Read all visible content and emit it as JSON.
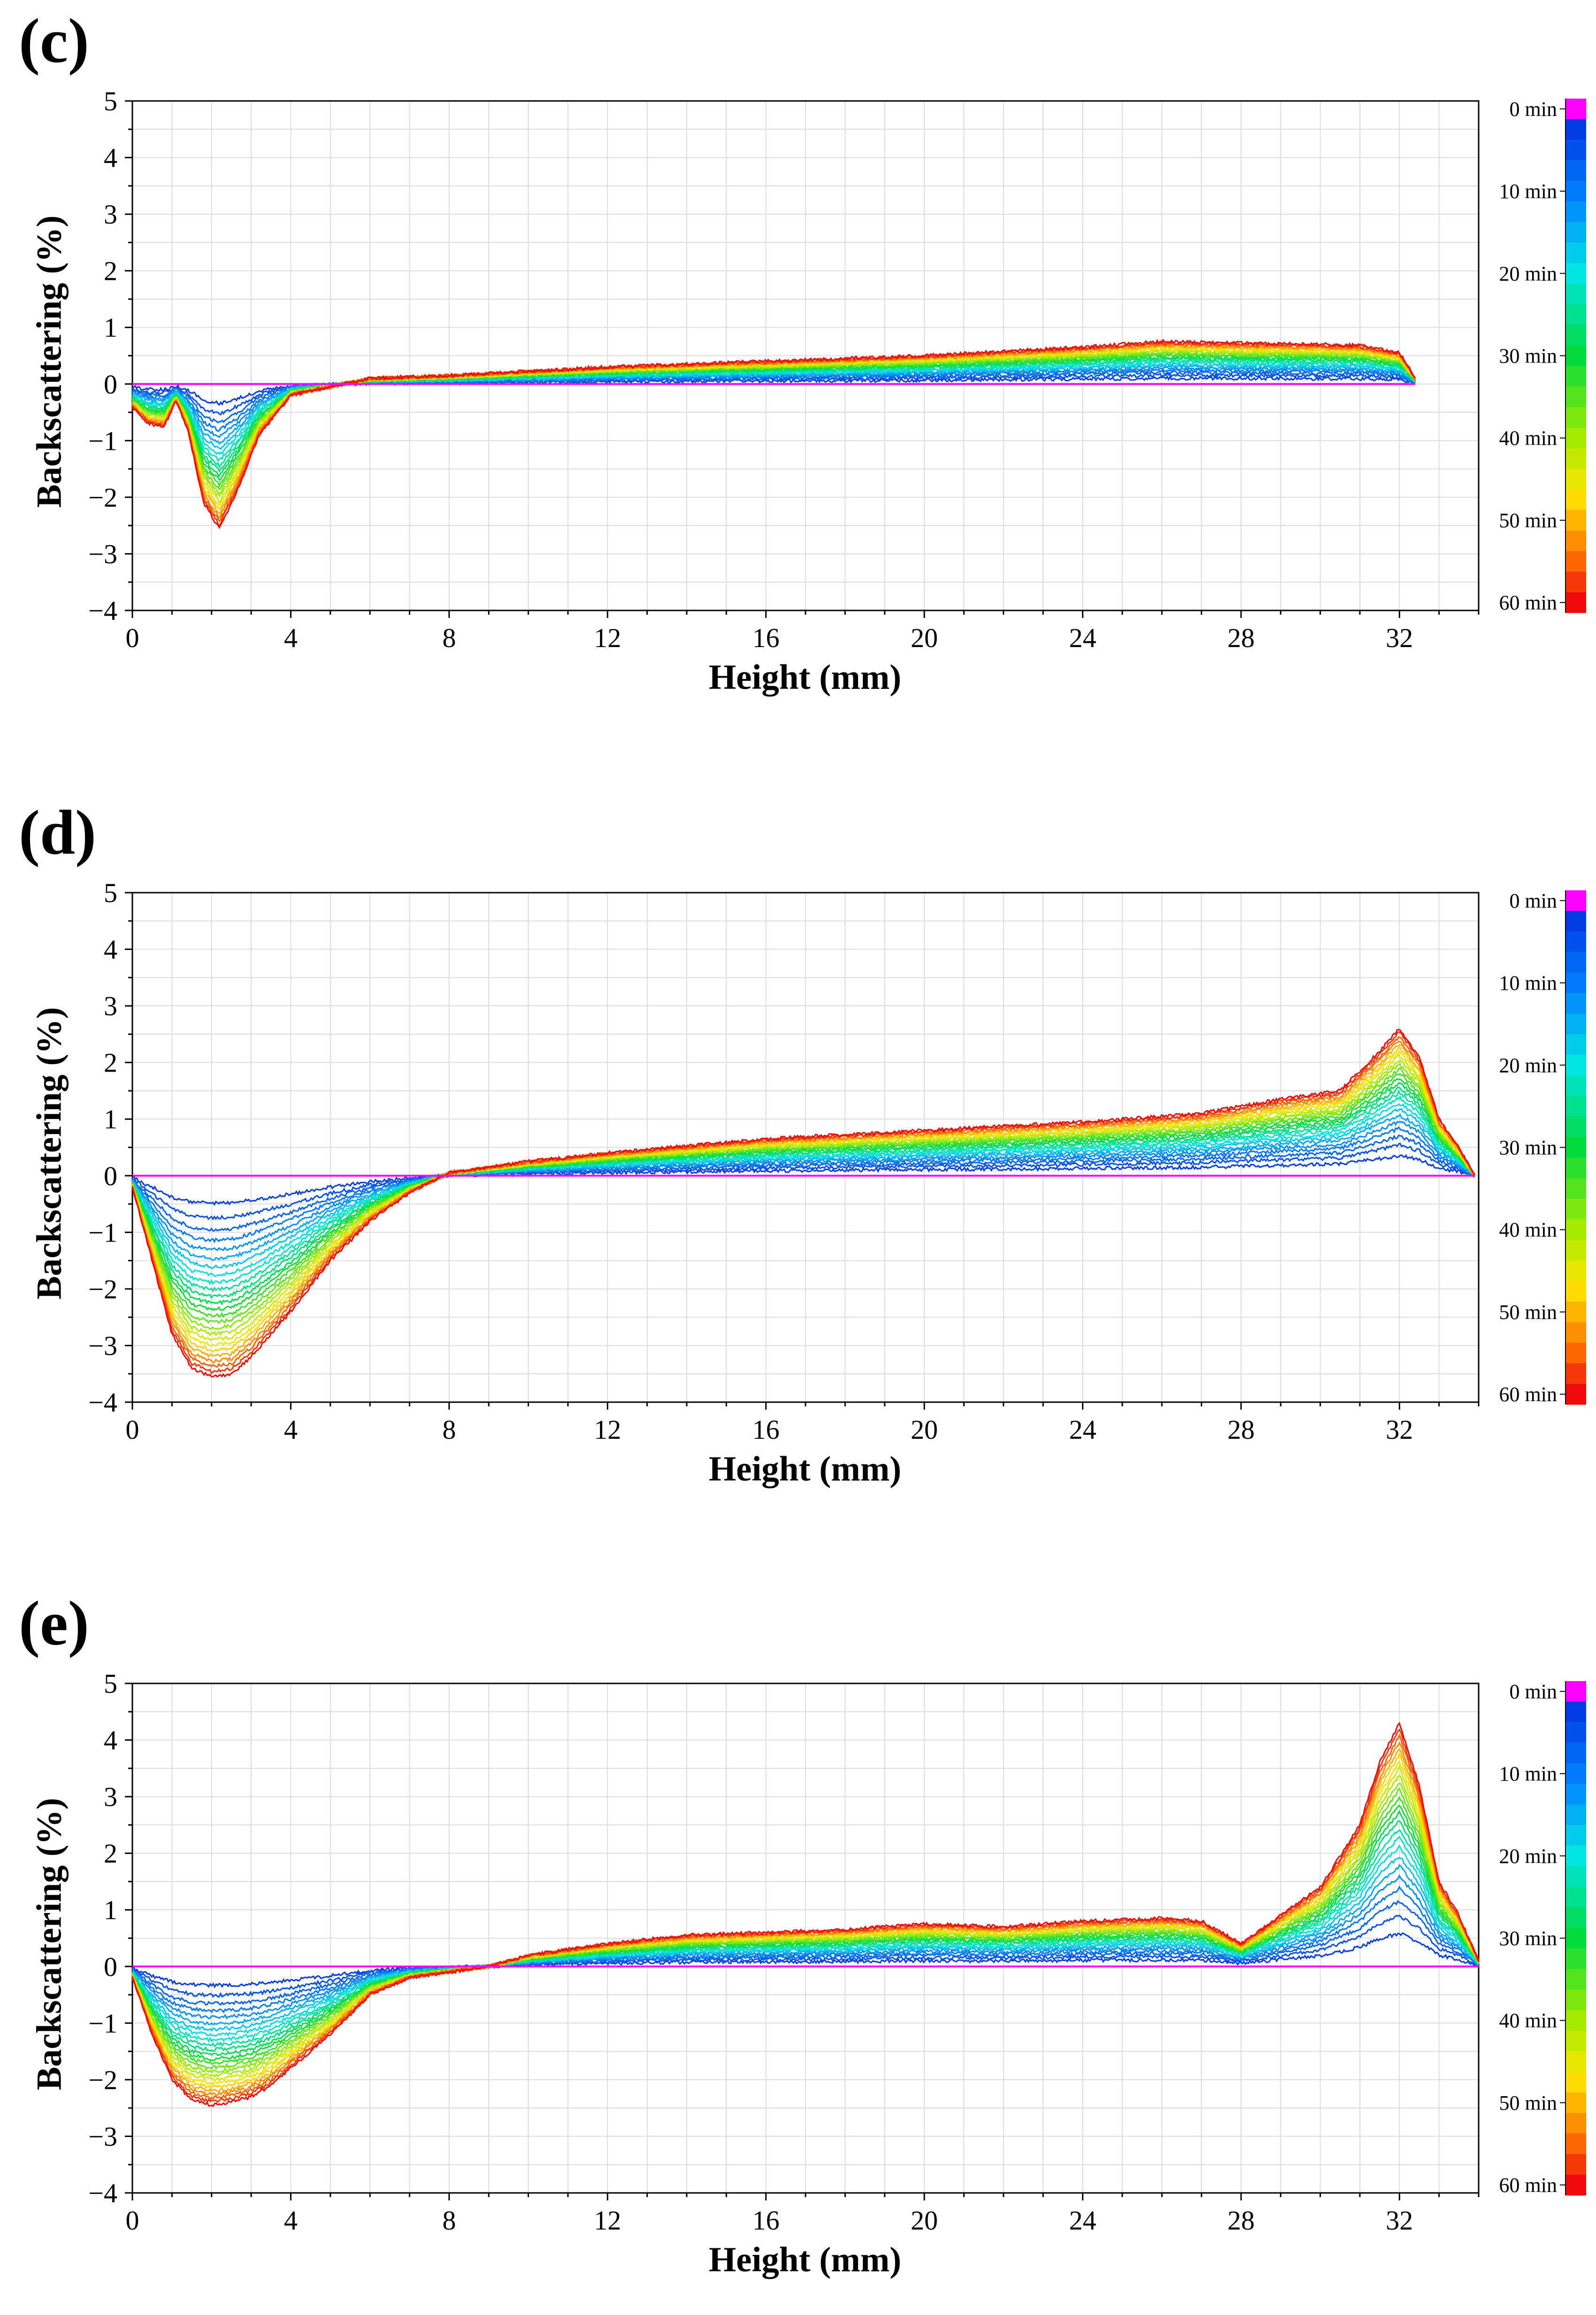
{
  "chart_data": [
    {
      "type": "line",
      "panel_label": "(c)",
      "xlabel": "Height (mm)",
      "ylabel": "Backscattering (%)",
      "xlim": [
        0,
        34
      ],
      "ylim": [
        -4,
        5
      ],
      "x_ticks": [
        "0",
        "4",
        "8",
        "12",
        "16",
        "20",
        "24",
        "28",
        "32"
      ],
      "y_ticks": [
        "5",
        "4",
        "3",
        "2",
        "1",
        "0",
        "−1",
        "−2",
        "−3",
        "−4"
      ],
      "x_end": 32.4,
      "reference_line": {
        "name": "0 min",
        "value": 0,
        "color": "#ff00ff"
      },
      "series_profile": {
        "x": [
          0,
          0.4,
          0.8,
          1.1,
          1.4,
          1.8,
          2.2,
          2.7,
          3.2,
          4,
          5,
          6,
          8,
          12,
          16,
          20,
          24,
          26,
          28,
          30,
          31,
          32,
          32.4
        ],
        "final_y": [
          -0.4,
          -0.7,
          -0.75,
          -0.3,
          -0.8,
          -2.1,
          -2.55,
          -1.8,
          -0.9,
          -0.2,
          -0.05,
          0.1,
          0.15,
          0.3,
          0.4,
          0.5,
          0.65,
          0.75,
          0.72,
          0.7,
          0.68,
          0.55,
          0.1
        ]
      },
      "colorbar": {
        "labels": [
          "0 min",
          "10 min",
          "20 min",
          "30 min",
          "40 min",
          "50 min",
          "60 min"
        ]
      }
    },
    {
      "type": "line",
      "panel_label": "(d)",
      "xlabel": "Height (mm)",
      "ylabel": "Backscattering (%)",
      "xlim": [
        0,
        34
      ],
      "ylim": [
        -4,
        5
      ],
      "x_ticks": [
        "0",
        "4",
        "8",
        "12",
        "16",
        "20",
        "24",
        "28",
        "32"
      ],
      "y_ticks": [
        "5",
        "4",
        "3",
        "2",
        "1",
        "0",
        "−1",
        "−2",
        "−3",
        "−4"
      ],
      "x_end": 33.9,
      "reference_line": {
        "name": "0 min",
        "value": 0,
        "color": "#ff00ff"
      },
      "series_profile": {
        "x": [
          0,
          0.5,
          1,
          1.5,
          2,
          2.5,
          3,
          4,
          5,
          6,
          7,
          8,
          10,
          12,
          16,
          20,
          24,
          27,
          29,
          30.5,
          31.5,
          32,
          32.5,
          33,
          33.5,
          33.9
        ],
        "final_y": [
          -0.2,
          -1.5,
          -2.8,
          -3.4,
          -3.55,
          -3.5,
          -3.2,
          -2.4,
          -1.5,
          -0.8,
          -0.3,
          0.05,
          0.25,
          0.4,
          0.65,
          0.8,
          0.95,
          1.1,
          1.35,
          1.5,
          2.2,
          2.6,
          2.1,
          1.0,
          0.5,
          0.0
        ]
      },
      "colorbar": {
        "labels": [
          "0 min",
          "10 min",
          "20 min",
          "30 min",
          "40 min",
          "50 min",
          "60 min"
        ]
      }
    },
    {
      "type": "line",
      "panel_label": "(e)",
      "xlabel": "Height (mm)",
      "ylabel": "Backscattering (%)",
      "xlim": [
        0,
        34
      ],
      "ylim": [
        -4,
        5
      ],
      "x_ticks": [
        "0",
        "4",
        "8",
        "12",
        "16",
        "20",
        "24",
        "28",
        "32"
      ],
      "y_ticks": [
        "5",
        "4",
        "3",
        "2",
        "1",
        "0",
        "−1",
        "−2",
        "−3",
        "−4"
      ],
      "x_end": 34,
      "reference_line": {
        "name": "0 min",
        "value": 0,
        "color": "#ff00ff"
      },
      "series_profile": {
        "x": [
          0,
          0.5,
          1,
          1.5,
          2,
          2.5,
          3,
          3.5,
          4,
          5,
          6,
          7,
          8,
          9,
          10,
          12,
          14,
          16,
          18,
          20,
          22,
          24,
          26,
          27,
          28,
          29,
          30,
          31,
          31.5,
          32,
          32.5,
          33,
          33.5,
          34
        ],
        "final_y": [
          -0.2,
          -1.2,
          -2.0,
          -2.35,
          -2.45,
          -2.4,
          -2.3,
          -2.1,
          -1.8,
          -1.2,
          -0.5,
          -0.2,
          -0.1,
          0.0,
          0.2,
          0.4,
          0.55,
          0.6,
          0.65,
          0.75,
          0.7,
          0.8,
          0.85,
          0.8,
          0.4,
          0.9,
          1.4,
          2.5,
          3.6,
          4.3,
          3.2,
          1.5,
          0.9,
          0.1
        ]
      },
      "colorbar": {
        "labels": [
          "0 min",
          "10 min",
          "20 min",
          "30 min",
          "40 min",
          "50 min",
          "60 min"
        ]
      }
    }
  ]
}
